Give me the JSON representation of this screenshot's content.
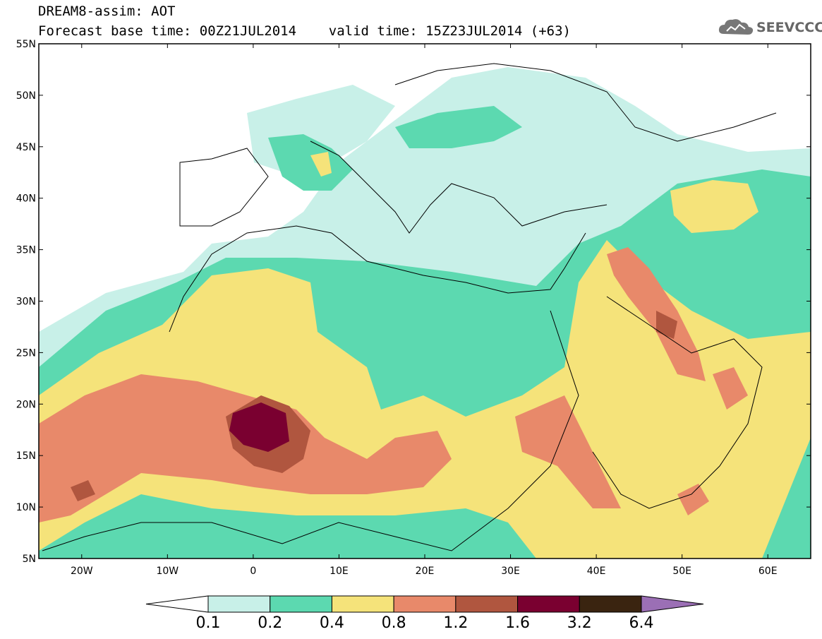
{
  "title": {
    "line1": "DREAM8-assim: AOT",
    "line2": "Forecast base time: 00Z21JUL2014    valid time: 15Z23JUL2014 (+63)"
  },
  "logo": {
    "text": "SEEVCCC",
    "icon": "cloud-icon"
  },
  "map": {
    "lon_range": [
      -25,
      65
    ],
    "lat_range": [
      5,
      55
    ],
    "x_ticks": [
      "20W",
      "10W",
      "0",
      "10E",
      "20E",
      "30E",
      "40E",
      "50E",
      "60E"
    ],
    "y_ticks": [
      "55N",
      "50N",
      "45N",
      "40N",
      "35N",
      "30N",
      "25N",
      "20N",
      "15N",
      "10N",
      "5N"
    ]
  },
  "colorbar": {
    "labels": [
      "0.1",
      "0.2",
      "0.4",
      "0.8",
      "1.2",
      "1.6",
      "3.2",
      "6.4"
    ],
    "colors": [
      "#ffffff",
      "#c8f0e8",
      "#5cd9b0",
      "#f5e37a",
      "#e8896a",
      "#b0563f",
      "#7a0030",
      "#3a2410",
      "#9b6fb5"
    ]
  }
}
